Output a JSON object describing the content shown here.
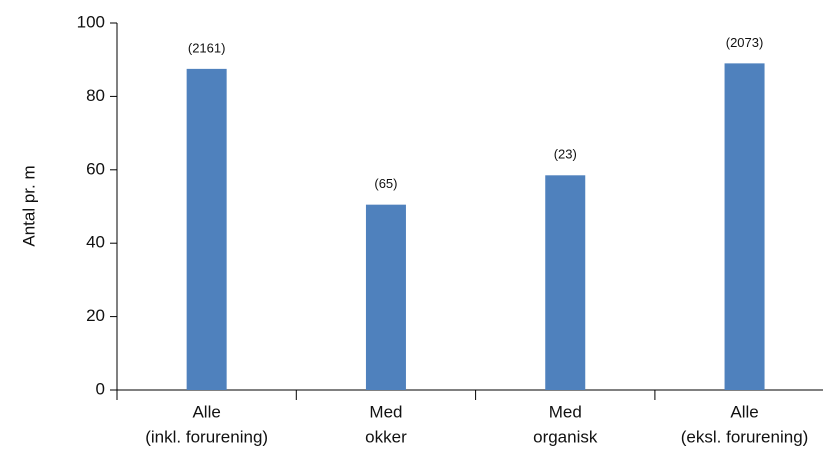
{
  "chart_data": {
    "type": "bar",
    "y_label": "Antal pr. m",
    "categories": [
      [
        "Alle",
        "(inkl. forurening)"
      ],
      [
        "Med",
        "okker"
      ],
      [
        "Med",
        "organisk"
      ],
      [
        "Alle",
        "(eksl. forurening)"
      ]
    ],
    "values": [
      87.5,
      50.5,
      58.5,
      89
    ],
    "annotations": [
      "(2161)",
      "(65)",
      "(23)",
      "(2073)"
    ],
    "color": "#4f81bd",
    "ylim": [
      0,
      100
    ],
    "yticks": [
      0,
      20,
      40,
      60,
      80,
      100
    ]
  }
}
